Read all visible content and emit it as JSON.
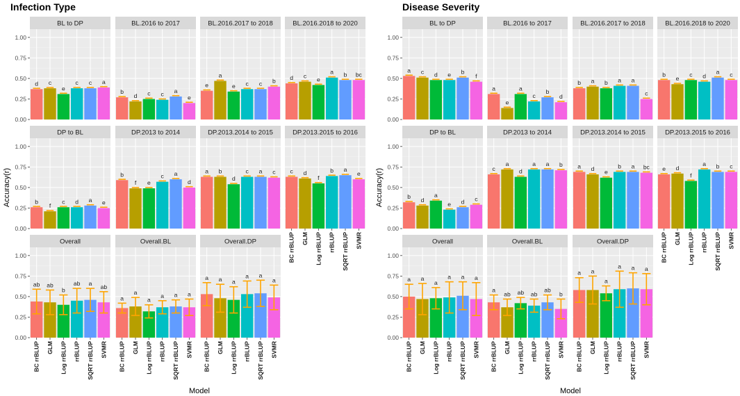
{
  "colors": {
    "BC rrBLUP": "#f8766d",
    "GLM": "#b79f00",
    "Log rrBLUP": "#00ba38",
    "rrBLUP": "#00bfc4",
    "SQRT rrBLUP": "#619cff",
    "SVMR": "#f564e3",
    "error": "#ffa500"
  },
  "chart_data": [
    {
      "type": "bar",
      "title": "Infection Type",
      "ylabel": "Accuracy(r)",
      "xlabel": "Model",
      "ylim": [
        0,
        1.1
      ],
      "yticks": [
        "0.00",
        "0.25",
        "0.50",
        "0.75",
        "1.00"
      ],
      "models": [
        "BC rrBLUP",
        "GLM",
        "Log rrBLUP",
        "rrBLUP",
        "SQRT rrBLUP",
        "SVMR"
      ],
      "panels": [
        {
          "strip": "BL to DP",
          "values": [
            0.37,
            0.38,
            0.31,
            0.38,
            0.38,
            0.39
          ],
          "letters": [
            "d",
            "c",
            "e",
            "c",
            "c",
            "a"
          ]
        },
        {
          "strip": "BL.2016 to 2017",
          "values": [
            0.27,
            0.22,
            0.25,
            0.24,
            0.28,
            0.2
          ],
          "letters": [
            "b",
            "d",
            "c",
            "c",
            "a",
            "e"
          ]
        },
        {
          "strip": "BL.2016.2017 to 2018",
          "values": [
            0.35,
            0.47,
            0.34,
            0.37,
            0.37,
            0.4
          ],
          "letters": [
            "e",
            "a",
            "e",
            "c",
            "c",
            "b"
          ]
        },
        {
          "strip": "BL.2016.2018 to 2020",
          "values": [
            0.44,
            0.46,
            0.42,
            0.51,
            0.48,
            0.48
          ],
          "letters": [
            "d",
            "c",
            "e",
            "a",
            "b",
            "bc"
          ]
        },
        {
          "strip": "DP to BL",
          "values": [
            0.26,
            0.21,
            0.26,
            0.26,
            0.28,
            0.25
          ],
          "letters": [
            "b",
            "f",
            "c",
            "d",
            "a",
            "e"
          ]
        },
        {
          "strip": "DP.2013 to 2014",
          "values": [
            0.59,
            0.49,
            0.49,
            0.57,
            0.6,
            0.5
          ],
          "letters": [
            "b",
            "f",
            "e",
            "c",
            "a",
            "d"
          ]
        },
        {
          "strip": "DP.2013.2014 to 2015",
          "values": [
            0.63,
            0.63,
            0.54,
            0.63,
            0.63,
            0.62
          ],
          "letters": [
            "a",
            "b",
            "d",
            "c",
            "a",
            "c"
          ]
        },
        {
          "strip": "DP.2013.2015 to 2016",
          "values": [
            0.63,
            0.61,
            0.55,
            0.64,
            0.65,
            0.6
          ],
          "letters": [
            "c",
            "d",
            "f",
            "b",
            "a",
            "e"
          ]
        },
        {
          "strip": "Overall",
          "values": [
            0.44,
            0.43,
            0.4,
            0.45,
            0.46,
            0.43
          ],
          "letters": [
            "ab",
            "ab",
            "b",
            "ab",
            "a",
            "ab"
          ],
          "errors": [
            0.15,
            0.15,
            0.12,
            0.15,
            0.14,
            0.13
          ]
        },
        {
          "strip": "Overall.BL",
          "values": [
            0.36,
            0.38,
            0.32,
            0.37,
            0.38,
            0.37
          ],
          "letters": [
            "a",
            "a",
            "a",
            "a",
            "a",
            "a"
          ],
          "errors": [
            0.06,
            0.11,
            0.08,
            0.08,
            0.08,
            0.1
          ]
        },
        {
          "strip": "Overall.DP",
          "values": [
            0.53,
            0.48,
            0.46,
            0.53,
            0.54,
            0.49
          ],
          "letters": [
            "a",
            "a",
            "a",
            "a",
            "a",
            "a"
          ],
          "errors": [
            0.14,
            0.17,
            0.16,
            0.16,
            0.16,
            0.15
          ]
        }
      ]
    },
    {
      "type": "bar",
      "title": "Disease Severity",
      "ylabel": "Accuracy(r)",
      "xlabel": "Model",
      "ylim": [
        0,
        1.1
      ],
      "yticks": [
        "0.00",
        "0.25",
        "0.50",
        "0.75",
        "1.00"
      ],
      "models": [
        "BC rrBLUP",
        "GLM",
        "Log rrBLUP",
        "rrBLUP",
        "SQRT rrBLUP",
        "SVMR"
      ],
      "panels": [
        {
          "strip": "BL to DP",
          "values": [
            0.53,
            0.51,
            0.48,
            0.48,
            0.51,
            0.46
          ],
          "letters": [
            "a",
            "c",
            "d",
            "e",
            "b",
            "f"
          ]
        },
        {
          "strip": "BL.2016 to 2017",
          "values": [
            0.31,
            0.14,
            0.31,
            0.22,
            0.27,
            0.21
          ],
          "letters": [
            "a",
            "e",
            "a",
            "c",
            "b",
            "d"
          ]
        },
        {
          "strip": "BL.2016.2017 to 2018",
          "values": [
            0.38,
            0.4,
            0.38,
            0.41,
            0.41,
            0.25
          ],
          "letters": [
            "b",
            "a",
            "b",
            "a",
            "a",
            "c"
          ]
        },
        {
          "strip": "BL.2016.2018 to 2020",
          "values": [
            0.48,
            0.43,
            0.48,
            0.46,
            0.51,
            0.48
          ],
          "letters": [
            "b",
            "e",
            "c",
            "d",
            "a",
            "c"
          ]
        },
        {
          "strip": "DP to BL",
          "values": [
            0.32,
            0.28,
            0.34,
            0.23,
            0.26,
            0.29
          ],
          "letters": [
            "b",
            "d",
            "a",
            "e",
            "d",
            "c"
          ]
        },
        {
          "strip": "DP.2013 to 2014",
          "values": [
            0.66,
            0.72,
            0.63,
            0.72,
            0.72,
            0.71
          ],
          "letters": [
            "c",
            "a",
            "d",
            "a",
            "a",
            "b"
          ]
        },
        {
          "strip": "DP.2013.2014 to 2015",
          "values": [
            0.69,
            0.66,
            0.62,
            0.69,
            0.69,
            0.68
          ],
          "letters": [
            "a",
            "d",
            "e",
            "b",
            "a",
            "bc"
          ]
        },
        {
          "strip": "DP.2013.2015 to 2016",
          "values": [
            0.66,
            0.67,
            0.58,
            0.72,
            0.69,
            0.69
          ],
          "letters": [
            "e",
            "d",
            "f",
            "a",
            "b",
            "c"
          ]
        },
        {
          "strip": "Overall",
          "values": [
            0.5,
            0.47,
            0.48,
            0.49,
            0.51,
            0.47
          ],
          "letters": [
            "a",
            "a",
            "a",
            "a",
            "a",
            "a"
          ],
          "errors": [
            0.15,
            0.19,
            0.13,
            0.19,
            0.17,
            0.2
          ]
        },
        {
          "strip": "Overall.BL",
          "values": [
            0.43,
            0.37,
            0.42,
            0.39,
            0.43,
            0.35
          ],
          "letters": [
            "a",
            "ab",
            "ab",
            "ab",
            "ab",
            "b"
          ],
          "errors": [
            0.09,
            0.1,
            0.07,
            0.08,
            0.09,
            0.12
          ]
        },
        {
          "strip": "Overall.DP",
          "values": [
            0.58,
            0.58,
            0.54,
            0.59,
            0.6,
            0.59
          ],
          "letters": [
            "a",
            "a",
            "a",
            "a",
            "a",
            "a"
          ],
          "errors": [
            0.15,
            0.17,
            0.09,
            0.22,
            0.19,
            0.19
          ]
        }
      ]
    }
  ]
}
